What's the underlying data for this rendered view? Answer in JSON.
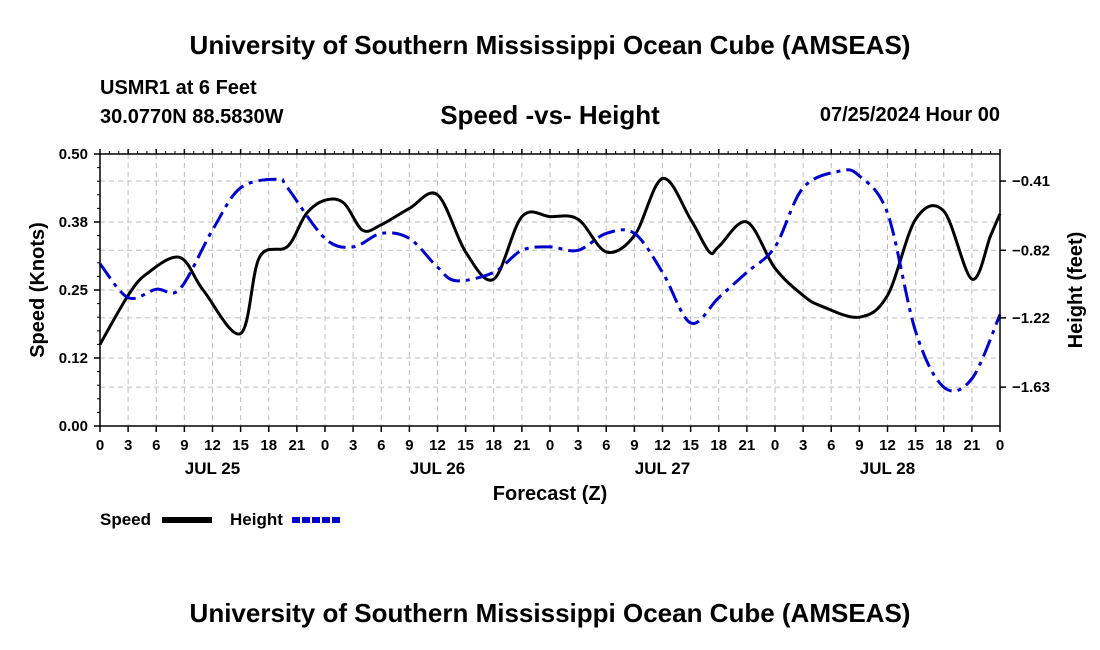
{
  "header": {
    "main_title": "University of Southern Mississippi Ocean Cube (AMSEAS)",
    "station": "USMR1 at 6 Feet",
    "coords": "30.0770N  88.5830W",
    "date": "07/25/2024 Hour 00"
  },
  "footer": {
    "main_title": "University of Southern Mississippi Ocean Cube (AMSEAS)"
  },
  "chart_data": {
    "type": "line",
    "title": "Speed -vs- Height",
    "xlabel": "Forecast (Z)",
    "ylabel_left": "Speed (Knots)",
    "ylabel_right": "Height (feet)",
    "x_hours_range": [
      0,
      96
    ],
    "x_tick_step_hours": 3,
    "x_tick_labels": [
      "0",
      "3",
      "6",
      "9",
      "12",
      "15",
      "18",
      "21",
      "0",
      "3",
      "6",
      "9",
      "12",
      "15",
      "18",
      "21",
      "0",
      "3",
      "6",
      "9",
      "12",
      "15",
      "18",
      "21",
      "0",
      "3",
      "6",
      "9",
      "12",
      "15",
      "18",
      "21",
      "0"
    ],
    "day_labels": [
      {
        "hour": 12,
        "label": "JUL 25"
      },
      {
        "hour": 36,
        "label": "JUL 26"
      },
      {
        "hour": 60,
        "label": "JUL 27"
      },
      {
        "hour": 84,
        "label": "JUL 28"
      }
    ],
    "ylim_left": [
      0,
      0.5
    ],
    "y_ticks_left": [
      "0.00",
      "0.12",
      "0.25",
      "0.38",
      "0.50"
    ],
    "ylim_right": [
      -1.86,
      -0.25
    ],
    "y_ticks_right": [
      {
        "value": -0.41,
        "label": "-0.41"
      },
      {
        "value": -0.82,
        "label": "-0.82"
      },
      {
        "value": -1.22,
        "label": "-1.22"
      },
      {
        "value": -1.63,
        "label": "-1.63"
      }
    ],
    "grid": true,
    "legend_position": "bottom-left",
    "series": [
      {
        "name": "Speed",
        "axis": "left",
        "color": "#000000",
        "dash": "solid",
        "x": [
          0,
          3,
          5,
          8.5,
          11,
          15,
          17,
          20,
          22,
          24,
          26,
          28,
          30,
          33,
          36,
          39,
          42,
          45,
          48,
          51,
          54,
          57,
          60,
          63,
          65,
          66,
          69,
          72,
          75,
          77,
          81,
          84,
          87,
          90,
          93,
          95,
          96
        ],
        "values": [
          0.15,
          0.24,
          0.28,
          0.31,
          0.25,
          0.17,
          0.31,
          0.33,
          0.39,
          0.415,
          0.41,
          0.36,
          0.37,
          0.4,
          0.425,
          0.32,
          0.27,
          0.385,
          0.385,
          0.38,
          0.32,
          0.35,
          0.455,
          0.38,
          0.32,
          0.33,
          0.375,
          0.29,
          0.24,
          0.22,
          0.2,
          0.24,
          0.38,
          0.395,
          0.27,
          0.35,
          0.39
        ]
      },
      {
        "name": "Height",
        "axis": "right",
        "color": "#0000cc",
        "dash": "dash-dot",
        "x": [
          0,
          3,
          6,
          8.5,
          12,
          15,
          19,
          20,
          24,
          27,
          30,
          33,
          36,
          38,
          42,
          45,
          48,
          51,
          54,
          57,
          60,
          63,
          66,
          69,
          72,
          75,
          79,
          81,
          84,
          87,
          90,
          93,
          96
        ],
        "values": [
          -0.9,
          -1.1,
          -1.05,
          -1.05,
          -0.7,
          -0.45,
          -0.4,
          -0.45,
          -0.75,
          -0.8,
          -0.72,
          -0.75,
          -0.92,
          -1.0,
          -0.95,
          -0.82,
          -0.8,
          -0.82,
          -0.72,
          -0.72,
          -0.95,
          -1.25,
          -1.1,
          -0.95,
          -0.8,
          -0.45,
          -0.35,
          -0.38,
          -0.6,
          -1.3,
          -1.63,
          -1.58,
          -1.2
        ]
      }
    ]
  }
}
